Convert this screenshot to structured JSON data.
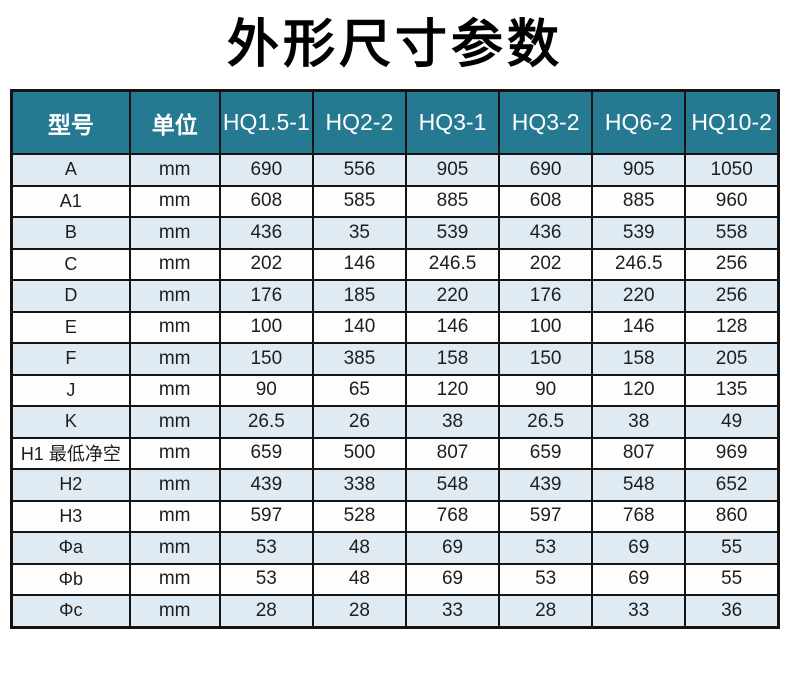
{
  "page": {
    "title": "外形尺寸参数"
  },
  "colors": {
    "header_bg": "#257a92",
    "header_text": "#ffffff",
    "stripe_row_bg": "#dfeaf2",
    "plain_row_bg": "#fdfdfd",
    "border": "#141414",
    "cell_text": "#1e1e1e",
    "title_text": "#000000"
  },
  "table": {
    "headers": [
      "型号",
      "单位",
      "HQ1.5-1",
      "HQ2-2",
      "HQ3-1",
      "HQ3-2",
      "HQ6-2",
      "HQ10-2"
    ],
    "rows": [
      {
        "label": "A",
        "unit": "mm",
        "values": [
          "690",
          "556",
          "905",
          "690",
          "905",
          "1050"
        ]
      },
      {
        "label": "A1",
        "unit": "mm",
        "values": [
          "608",
          "585",
          "885",
          "608",
          "885",
          "960"
        ]
      },
      {
        "label": "B",
        "unit": "mm",
        "values": [
          "436",
          "35",
          "539",
          "436",
          "539",
          "558"
        ]
      },
      {
        "label": "C",
        "unit": "mm",
        "values": [
          "202",
          "146",
          "246.5",
          "202",
          "246.5",
          "256"
        ]
      },
      {
        "label": "D",
        "unit": "mm",
        "values": [
          "176",
          "185",
          "220",
          "176",
          "220",
          "256"
        ]
      },
      {
        "label": "E",
        "unit": "mm",
        "values": [
          "100",
          "140",
          "146",
          "100",
          "146",
          "128"
        ]
      },
      {
        "label": "F",
        "unit": "mm",
        "values": [
          "150",
          "385",
          "158",
          "150",
          "158",
          "205"
        ]
      },
      {
        "label": "J",
        "unit": "mm",
        "values": [
          "90",
          "65",
          "120",
          "90",
          "120",
          "135"
        ]
      },
      {
        "label": "K",
        "unit": "mm",
        "values": [
          "26.5",
          "26",
          "38",
          "26.5",
          "38",
          "49"
        ]
      },
      {
        "label": "H1 最低净空",
        "unit": "mm",
        "values": [
          "659",
          "500",
          "807",
          "659",
          "807",
          "969"
        ]
      },
      {
        "label": "H2",
        "unit": "mm",
        "values": [
          "439",
          "338",
          "548",
          "439",
          "548",
          "652"
        ]
      },
      {
        "label": "H3",
        "unit": "mm",
        "values": [
          "597",
          "528",
          "768",
          "597",
          "768",
          "860"
        ]
      },
      {
        "label": "Φa",
        "unit": "mm",
        "values": [
          "53",
          "48",
          "69",
          "53",
          "69",
          "55"
        ]
      },
      {
        "label": "Φb",
        "unit": "mm",
        "values": [
          "53",
          "48",
          "69",
          "53",
          "69",
          "55"
        ]
      },
      {
        "label": "Φc",
        "unit": "mm",
        "values": [
          "28",
          "28",
          "33",
          "28",
          "33",
          "36"
        ]
      }
    ]
  },
  "chart_data": {
    "type": "table",
    "title": "外形尺寸参数",
    "columns": [
      "型号",
      "单位",
      "HQ1.5-1",
      "HQ2-2",
      "HQ3-1",
      "HQ3-2",
      "HQ6-2",
      "HQ10-2"
    ],
    "rows": [
      [
        "A",
        "mm",
        690,
        556,
        905,
        690,
        905,
        1050
      ],
      [
        "A1",
        "mm",
        608,
        585,
        885,
        608,
        885,
        960
      ],
      [
        "B",
        "mm",
        436,
        35,
        539,
        436,
        539,
        558
      ],
      [
        "C",
        "mm",
        202,
        146,
        246.5,
        202,
        246.5,
        256
      ],
      [
        "D",
        "mm",
        176,
        185,
        220,
        176,
        220,
        256
      ],
      [
        "E",
        "mm",
        100,
        140,
        146,
        100,
        146,
        128
      ],
      [
        "F",
        "mm",
        150,
        385,
        158,
        150,
        158,
        205
      ],
      [
        "J",
        "mm",
        90,
        65,
        120,
        90,
        120,
        135
      ],
      [
        "K",
        "mm",
        26.5,
        26,
        38,
        26.5,
        38,
        49
      ],
      [
        "H1 最低净空",
        "mm",
        659,
        500,
        807,
        659,
        807,
        969
      ],
      [
        "H2",
        "mm",
        439,
        338,
        548,
        439,
        548,
        652
      ],
      [
        "H3",
        "mm",
        597,
        528,
        768,
        597,
        768,
        860
      ],
      [
        "Φa",
        "mm",
        53,
        48,
        69,
        53,
        69,
        55
      ],
      [
        "Φb",
        "mm",
        53,
        48,
        69,
        53,
        69,
        55
      ],
      [
        "Φc",
        "mm",
        28,
        28,
        33,
        28,
        33,
        36
      ]
    ]
  }
}
